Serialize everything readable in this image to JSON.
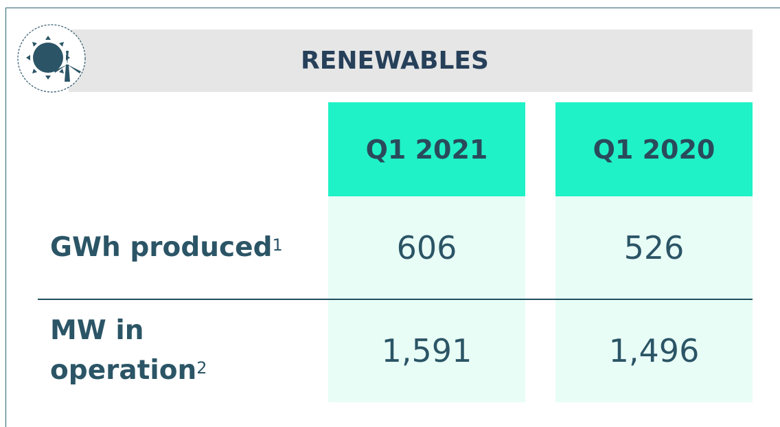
{
  "header": {
    "title": "RENEWABLES"
  },
  "table": {
    "columns": [
      "Q1 2021",
      "Q1 2020"
    ],
    "rows": [
      {
        "label": "GWh produced",
        "note": "1",
        "values": [
          "606",
          "526"
        ]
      },
      {
        "label": "MW in operation",
        "note": "2",
        "values": [
          "1,591",
          "1,496"
        ]
      }
    ]
  }
}
